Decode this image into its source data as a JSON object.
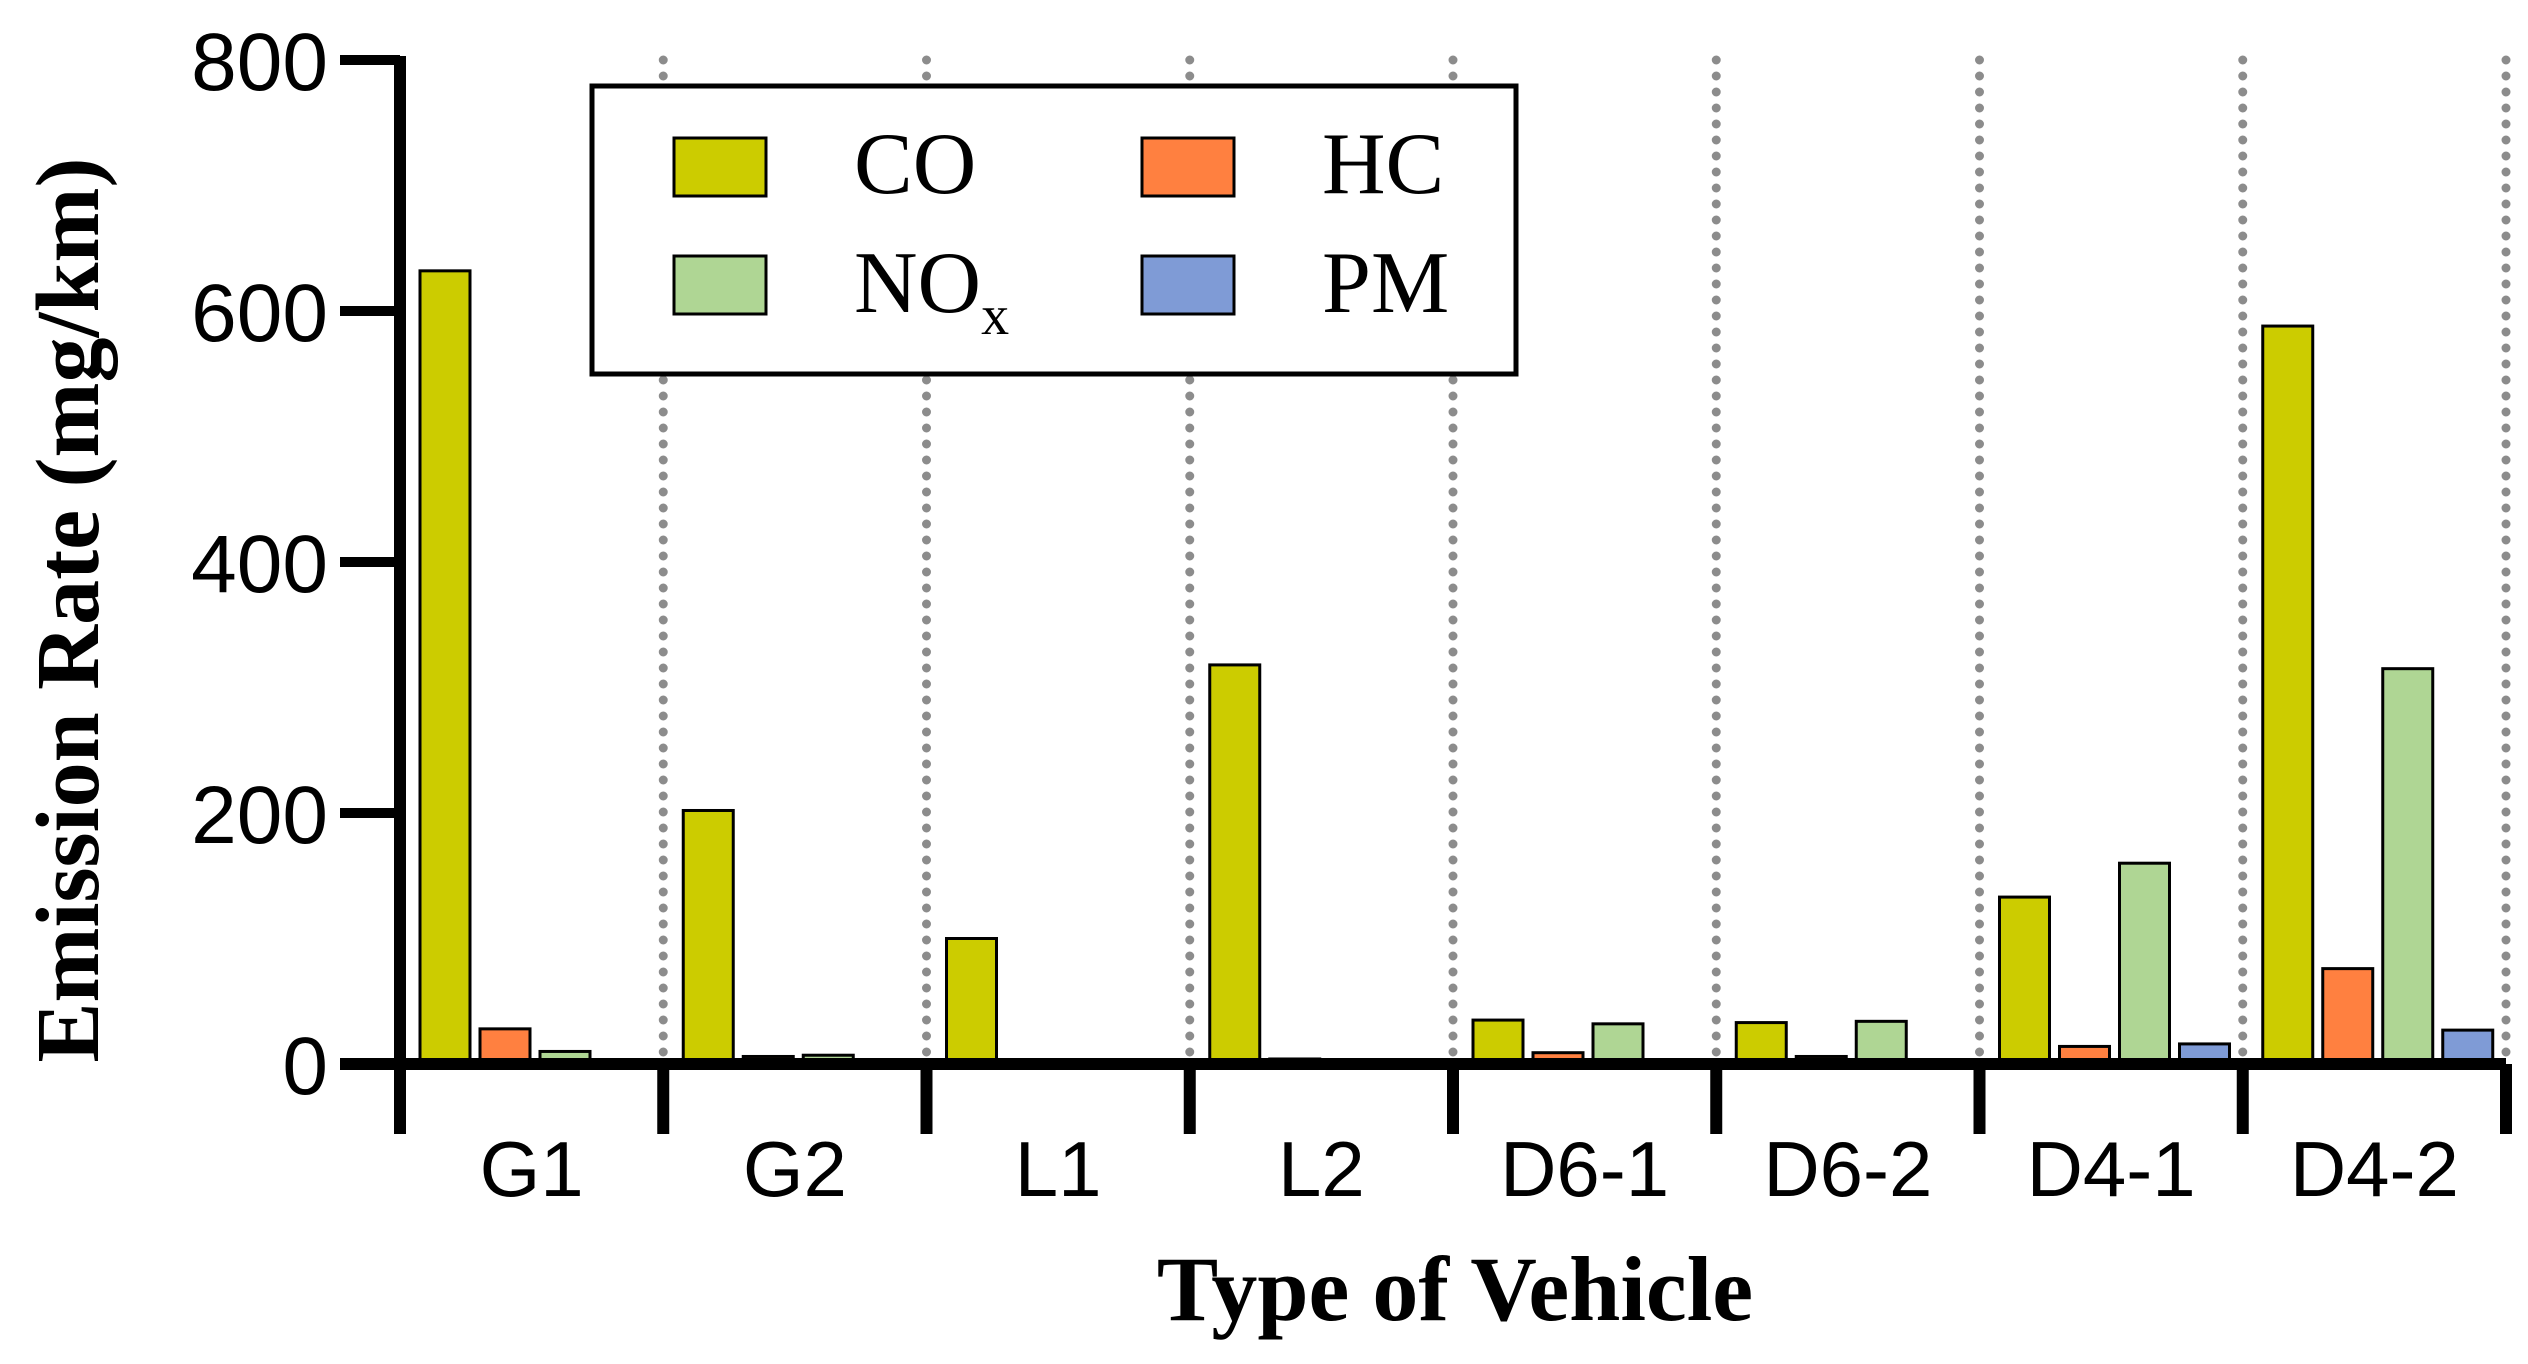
{
  "chart_data": {
    "type": "bar",
    "xlabel": "Type of Vehicle",
    "ylabel": "Emission Rate (mg/km)",
    "ylim": [
      0,
      800
    ],
    "yticks": [
      0,
      200,
      400,
      600,
      800
    ],
    "categories": [
      "G1",
      "G2",
      "L1",
      "L2",
      "D6-1",
      "D6-2",
      "D4-1",
      "D4-2"
    ],
    "series": [
      {
        "name": "CO",
        "color": "#CCCC00",
        "values": [
          632,
          202,
          100,
          318,
          35,
          33,
          133,
          588
        ]
      },
      {
        "name": "HC",
        "color": "#FF8040",
        "values": [
          28,
          6,
          0,
          4,
          9,
          6,
          14,
          76
        ]
      },
      {
        "name": "NOx",
        "color": "#AFD694",
        "values": [
          10,
          7,
          0,
          2,
          32,
          34,
          160,
          315
        ]
      },
      {
        "name": "PM",
        "color": "#7F9BD6",
        "values": [
          0,
          0,
          0,
          0,
          0,
          0,
          16,
          27
        ]
      }
    ],
    "legend": {
      "position": "top-left",
      "columns": 2,
      "entries": [
        {
          "label": "CO",
          "color": "#CCCC00"
        },
        {
          "label": "HC",
          "color": "#FF8040"
        },
        {
          "label": "NO",
          "sub": "x",
          "color": "#AFD694"
        },
        {
          "label": "PM",
          "color": "#7F9BD6"
        }
      ]
    },
    "separators": "dotted gray vertical lines between categories",
    "grid": false
  }
}
